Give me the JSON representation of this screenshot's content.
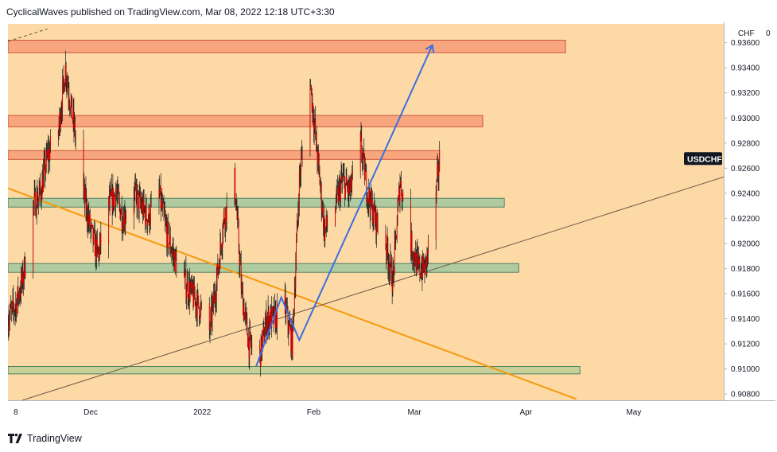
{
  "header": {
    "text": "CyclicalWaves published on TradingView.com, Mar 08, 2022 12:18 UTC+3:30"
  },
  "footer": {
    "brand": "TradingView"
  },
  "colors": {
    "background": "#fdd9a6",
    "candle": "#d50000",
    "wick": "#1a1a1a",
    "resistance_zone": "#f7a07a",
    "resistance_border": "#c0392b",
    "support_zone": "#a8c9a0",
    "support_border": "#2e6b4f",
    "bottom_zone": "#c2ce98",
    "orange_trendline": "#f59a0c",
    "rising_trendline": "#6b5a44",
    "projection": "#3a6fe0",
    "symbol_tag": "#131722"
  },
  "chart_data": {
    "type": "candlestick",
    "symbol": "USDCHF",
    "y_unit_label": "CHF",
    "y_top_tick": "0",
    "ylim": [
      0.9075,
      0.9375
    ],
    "y_ticks": [
      0.908,
      0.91,
      0.912,
      0.914,
      0.916,
      0.918,
      0.92,
      0.922,
      0.924,
      0.926,
      0.928,
      0.93,
      0.932,
      0.934,
      0.936
    ],
    "y_tick_labels": [
      "0.90800",
      "0.91000",
      "0.91200",
      "0.91400",
      "0.91600",
      "0.91800",
      "0.92000",
      "0.92200",
      "0.92400",
      "0.92600",
      "0.92800",
      "0.93000",
      "0.93200",
      "0.93400",
      "0.93600"
    ],
    "xlim": [
      "2021-11-08",
      "2022-05-26"
    ],
    "x_ticks": [
      {
        "date": "2021-11-08",
        "label": "8"
      },
      {
        "date": "2021-12-01",
        "label": "Dec"
      },
      {
        "date": "2022-01-01",
        "label": "2022"
      },
      {
        "date": "2022-02-01",
        "label": "Feb"
      },
      {
        "date": "2022-03-01",
        "label": "Mar"
      },
      {
        "date": "2022-04-01",
        "label": "Apr"
      },
      {
        "date": "2022-05-01",
        "label": "May"
      }
    ],
    "last_price": 0.9267,
    "price_path": [
      [
        "2021-11-08",
        0.914
      ],
      [
        "2021-11-10",
        0.915
      ],
      [
        "2021-11-12",
        0.917
      ],
      [
        "2021-11-15",
        0.923
      ],
      [
        "2021-11-17",
        0.924
      ],
      [
        "2021-11-19",
        0.927
      ],
      [
        "2021-11-22",
        0.929
      ],
      [
        "2021-11-24",
        0.934
      ],
      [
        "2021-11-26",
        0.93
      ],
      [
        "2021-11-29",
        0.924
      ],
      [
        "2021-12-01",
        0.921
      ],
      [
        "2021-12-03",
        0.919
      ],
      [
        "2021-12-06",
        0.923
      ],
      [
        "2021-12-08",
        0.924
      ],
      [
        "2021-12-10",
        0.922
      ],
      [
        "2021-12-13",
        0.924
      ],
      [
        "2021-12-15",
        0.923
      ],
      [
        "2021-12-17",
        0.922
      ],
      [
        "2021-12-20",
        0.924
      ],
      [
        "2021-12-22",
        0.921
      ],
      [
        "2021-12-24",
        0.919
      ],
      [
        "2021-12-27",
        0.917
      ],
      [
        "2021-12-29",
        0.916
      ],
      [
        "2021-12-31",
        0.915
      ],
      [
        "2022-01-03",
        0.913
      ],
      [
        "2022-01-05",
        0.917
      ],
      [
        "2022-01-07",
        0.922
      ],
      [
        "2022-01-10",
        0.925
      ],
      [
        "2022-01-12",
        0.916
      ],
      [
        "2022-01-14",
        0.912
      ],
      [
        "2022-01-17",
        0.911
      ],
      [
        "2022-01-19",
        0.914
      ],
      [
        "2022-01-21",
        0.914
      ],
      [
        "2022-01-24",
        0.915
      ],
      [
        "2022-01-26",
        0.912
      ],
      [
        "2022-01-28",
        0.925
      ],
      [
        "2022-01-31",
        0.933
      ],
      [
        "2022-02-02",
        0.927
      ],
      [
        "2022-02-04",
        0.921
      ],
      [
        "2022-02-07",
        0.923
      ],
      [
        "2022-02-09",
        0.925
      ],
      [
        "2022-02-11",
        0.924
      ],
      [
        "2022-02-14",
        0.928
      ],
      [
        "2022-02-16",
        0.924
      ],
      [
        "2022-02-18",
        0.922
      ],
      [
        "2022-02-21",
        0.92
      ],
      [
        "2022-02-23",
        0.917
      ],
      [
        "2022-02-25",
        0.925
      ],
      [
        "2022-02-28",
        0.92
      ],
      [
        "2022-03-02",
        0.918
      ],
      [
        "2022-03-04",
        0.918
      ],
      [
        "2022-03-07",
        0.924
      ],
      [
        "2022-03-08",
        0.9267
      ]
    ],
    "zones": [
      {
        "kind": "resistance",
        "top": 0.9362,
        "bottom": 0.9352,
        "end": "2022-04-12"
      },
      {
        "kind": "resistance",
        "top": 0.9302,
        "bottom": 0.9293,
        "end": "2022-03-20"
      },
      {
        "kind": "resistance",
        "top": 0.9274,
        "bottom": 0.9267,
        "end": "2022-03-08"
      },
      {
        "kind": "support",
        "top": 0.9236,
        "bottom": 0.9229,
        "end": "2022-03-26"
      },
      {
        "kind": "support",
        "top": 0.9184,
        "bottom": 0.9177,
        "end": "2022-03-30"
      },
      {
        "kind": "bottom",
        "top": 0.9102,
        "bottom": 0.9096,
        "end": "2022-04-16"
      }
    ],
    "trendlines": [
      {
        "kind": "orange_down",
        "from": [
          "2021-11-08",
          0.9244
        ],
        "to": [
          "2022-04-15",
          0.9076
        ]
      },
      {
        "kind": "rising",
        "from": [
          "2021-11-12",
          0.9075
        ],
        "to": [
          "2022-05-26",
          0.9253
        ]
      },
      {
        "kind": "dashed",
        "from": [
          "2021-11-08",
          0.9361
        ],
        "to": [
          "2021-11-19",
          0.9371
        ]
      }
    ],
    "projection": [
      [
        "2022-01-16",
        0.9102
      ],
      [
        "2022-01-23",
        0.9157
      ],
      [
        "2022-01-28",
        0.9123
      ],
      [
        "2022-03-06",
        0.9358
      ]
    ]
  }
}
